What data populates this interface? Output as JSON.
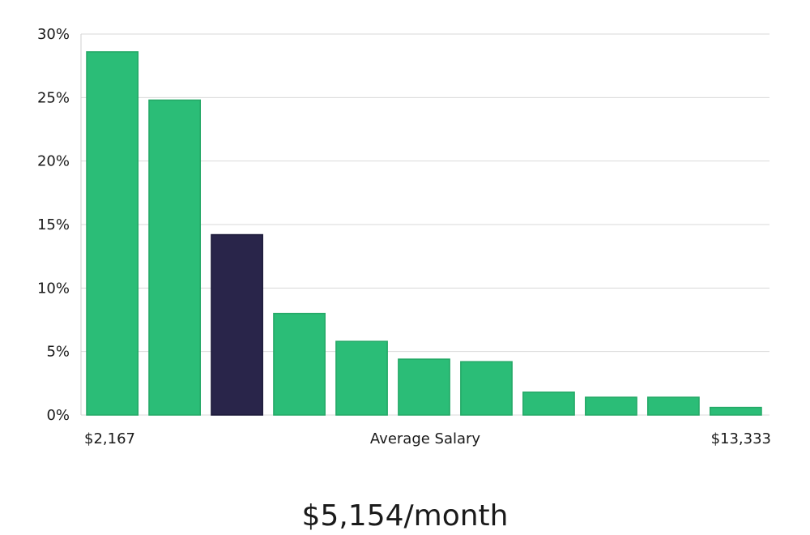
{
  "chart_data": {
    "type": "bar",
    "title": "",
    "xlabel": "Average Salary",
    "ylabel": "",
    "x_min_label": "$2,167",
    "x_max_label": "$13,333",
    "ylim": [
      0,
      30
    ],
    "y_ticks": [
      0,
      5,
      10,
      15,
      20,
      25,
      30
    ],
    "y_tick_labels": [
      "0%",
      "5%",
      "10%",
      "15%",
      "20%",
      "25%",
      "30%"
    ],
    "values": [
      28.6,
      24.8,
      14.2,
      8.0,
      5.8,
      4.4,
      4.2,
      1.8,
      1.4,
      1.4,
      0.6
    ],
    "highlight_index": 2,
    "grid": true
  },
  "headline": "$5,154/month",
  "colors": {
    "bar": "#2bbd77",
    "highlight": "#29254a",
    "text": "#1a1a1a"
  }
}
